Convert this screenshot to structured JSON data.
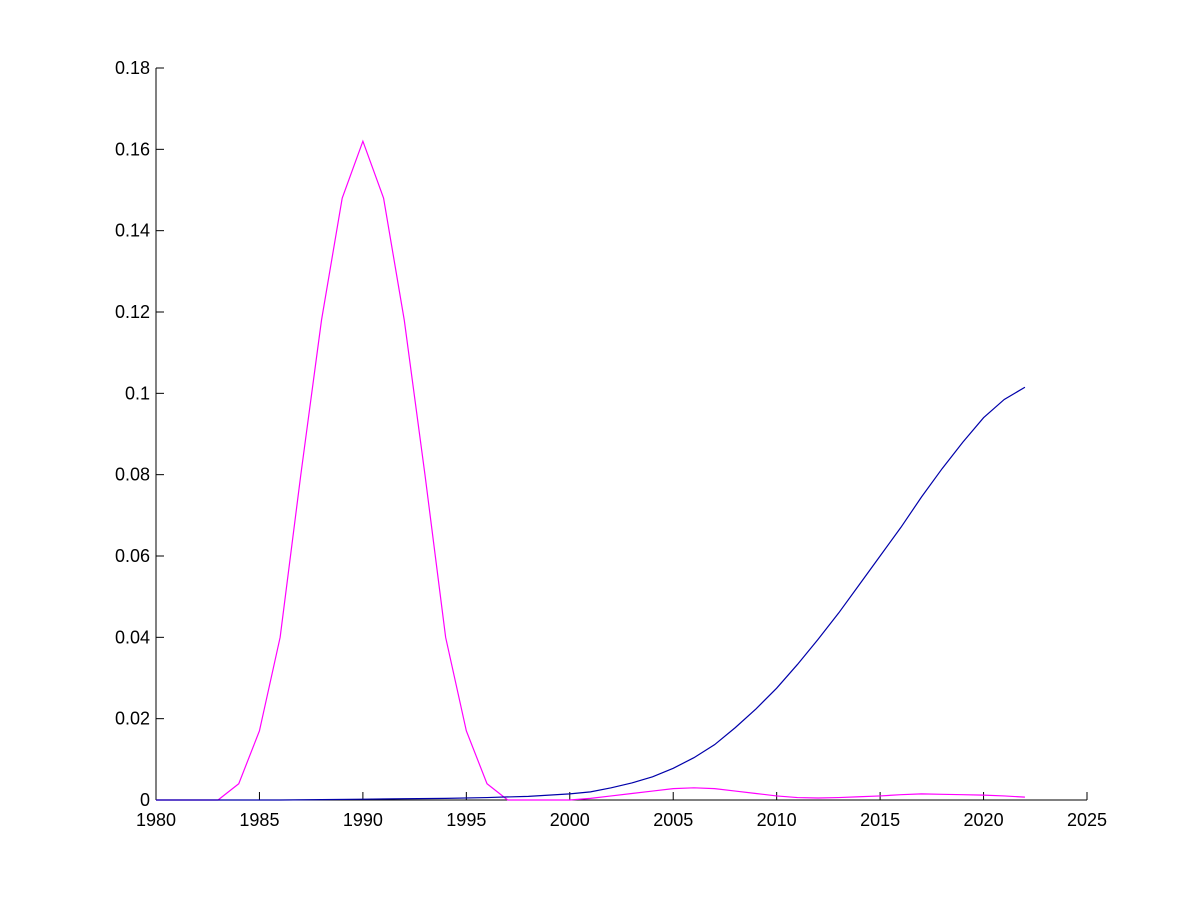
{
  "chart_data": {
    "type": "line",
    "title": "",
    "xlabel": "",
    "ylabel": "",
    "xlim": [
      1980,
      2025
    ],
    "ylim": [
      0,
      0.18
    ],
    "xticks": [
      "1980",
      "1985",
      "1990",
      "1995",
      "2000",
      "2005",
      "2010",
      "2015",
      "2020",
      "2025"
    ],
    "yticks": [
      "0",
      "0.02",
      "0.04",
      "0.06",
      "0.08",
      "0.1",
      "0.12",
      "0.14",
      "0.16",
      "0.18"
    ],
    "grid": false,
    "legend": "none",
    "series": [
      {
        "color": "#ff00ff",
        "x": [
          1980,
          1981,
          1982,
          1983,
          1984,
          1985,
          1986,
          1987,
          1988,
          1989,
          1990,
          1991,
          1992,
          1993,
          1994,
          1995,
          1996,
          1997,
          1998,
          1999,
          2000,
          2001,
          2002,
          2003,
          2004,
          2005,
          2006,
          2007,
          2008,
          2009,
          2010,
          2011,
          2012,
          2013,
          2014,
          2015,
          2016,
          2017,
          2018,
          2019,
          2020,
          2021,
          2022
        ],
        "y": [
          0,
          0,
          0,
          0,
          0.004,
          0.017,
          0.04,
          0.08,
          0.118,
          0.148,
          0.162,
          0.148,
          0.118,
          0.08,
          0.04,
          0.017,
          0.004,
          0,
          0,
          0,
          0,
          0.0004,
          0.001,
          0.0016,
          0.0022,
          0.0028,
          0.003,
          0.0028,
          0.0022,
          0.0016,
          0.001,
          0.0006,
          0.0005,
          0.0006,
          0.0008,
          0.001,
          0.0013,
          0.0015,
          0.0014,
          0.0013,
          0.0012,
          0.001,
          0.0007
        ]
      },
      {
        "color": "#0000aa",
        "x": [
          1980,
          1982,
          1984,
          1986,
          1988,
          1990,
          1992,
          1994,
          1996,
          1998,
          2000,
          2001,
          2002,
          2003,
          2004,
          2005,
          2006,
          2007,
          2008,
          2009,
          2010,
          2011,
          2012,
          2013,
          2014,
          2015,
          2016,
          2017,
          2018,
          2019,
          2020,
          2021,
          2022
        ],
        "y": [
          0,
          0,
          0,
          0,
          0.0001,
          0.0002,
          0.0003,
          0.0004,
          0.0006,
          0.0009,
          0.0015,
          0.002,
          0.003,
          0.0042,
          0.0057,
          0.0078,
          0.0104,
          0.0136,
          0.0178,
          0.0224,
          0.0275,
          0.0333,
          0.0395,
          0.046,
          0.053,
          0.06,
          0.067,
          0.0745,
          0.0815,
          0.088,
          0.094,
          0.0985,
          0.1015
        ]
      }
    ]
  }
}
